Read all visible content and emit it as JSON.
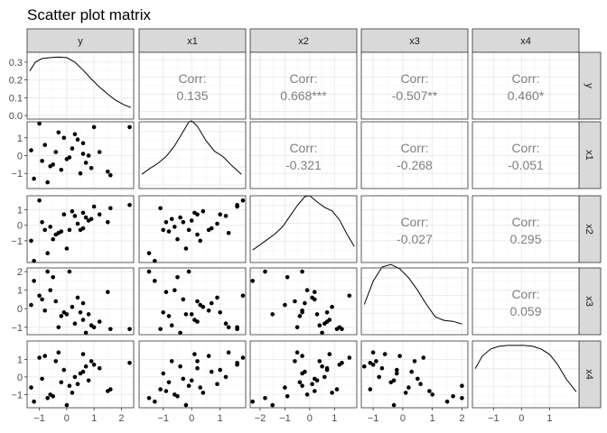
{
  "chart_data": {
    "type": "scatter",
    "title": "Scatter plot matrix",
    "variables": [
      "y",
      "x1",
      "x2",
      "x3",
      "x4"
    ],
    "colors": {
      "strip_fill": "#d9d9d9",
      "strip_border": "#333333",
      "panel_border": "#333333",
      "grid_major": "#ebebeb",
      "grid_minor": "#f5f5f5",
      "point": "#000000",
      "density_line": "#000000",
      "corr_text": "#7f7f7f",
      "tick_text": "#4d4d4d"
    },
    "grid": true,
    "corr_label": "Corr:",
    "axes": {
      "y": {
        "range": [
          -1.45,
          2.45
        ],
        "ticks": [
          -1,
          0,
          1,
          2
        ]
      },
      "x1": {
        "range": [
          -1.85,
          1.9
        ],
        "ticks": [
          -1,
          0,
          1
        ],
        "yticks": [
          -1,
          0,
          1
        ]
      },
      "x2": {
        "range": [
          -2.4,
          1.9
        ],
        "ticks": [
          -2,
          -1,
          0,
          1
        ],
        "yticks": [
          -1,
          0,
          1
        ]
      },
      "x3": {
        "range": [
          -1.4,
          2.2
        ],
        "ticks": [
          -1,
          0,
          1,
          2
        ],
        "yticks": [
          -1,
          0,
          1,
          2
        ]
      },
      "x4": {
        "range": [
          -1.75,
          2.05
        ],
        "ticks": [
          -1,
          0,
          1
        ],
        "yticks": [
          -1,
          0,
          1
        ]
      }
    },
    "density_axis": {
      "range": [
        -0.02,
        0.355
      ],
      "ticks": [
        0.0,
        0.1,
        0.2,
        0.3
      ],
      "tick_labels": [
        "0.0",
        "0.1",
        "0.2",
        "0.3"
      ]
    },
    "correlations": [
      {
        "row": "y",
        "col": "x1",
        "value": "0.135"
      },
      {
        "row": "y",
        "col": "x2",
        "value": "0.668***"
      },
      {
        "row": "y",
        "col": "x3",
        "value": "-0.507**"
      },
      {
        "row": "y",
        "col": "x4",
        "value": "0.460*"
      },
      {
        "row": "x1",
        "col": "x2",
        "value": "-0.321"
      },
      {
        "row": "x1",
        "col": "x3",
        "value": "-0.268"
      },
      {
        "row": "x1",
        "col": "x4",
        "value": "-0.051"
      },
      {
        "row": "x2",
        "col": "x3",
        "value": "-0.027"
      },
      {
        "row": "x2",
        "col": "x4",
        "value": "0.295"
      },
      {
        "row": "x3",
        "col": "x4",
        "value": "0.059"
      }
    ],
    "densities": {
      "y": {
        "x": [
          -1.35,
          -1.15,
          -0.9,
          -0.6,
          -0.3,
          0.0,
          0.3,
          0.6,
          0.9,
          1.2,
          1.5,
          1.8,
          2.1,
          2.35
        ],
        "y": [
          0.25,
          0.3,
          0.32,
          0.325,
          0.328,
          0.325,
          0.3,
          0.255,
          0.205,
          0.16,
          0.12,
          0.085,
          0.06,
          0.045
        ]
      },
      "x1": {
        "x": [
          -1.75,
          -1.5,
          -1.2,
          -0.9,
          -0.6,
          -0.3,
          -0.1,
          0.0,
          0.2,
          0.5,
          0.8,
          1.1,
          1.4,
          1.75
        ],
        "y": [
          0.06,
          0.09,
          0.12,
          0.16,
          0.22,
          0.3,
          0.355,
          0.36,
          0.33,
          0.25,
          0.19,
          0.16,
          0.11,
          0.06
        ]
      },
      "x2": {
        "x": [
          -2.3,
          -2.0,
          -1.7,
          -1.4,
          -1.1,
          -0.8,
          -0.5,
          -0.2,
          0.0,
          0.3,
          0.6,
          0.9,
          1.2,
          1.5,
          1.8
        ],
        "y": [
          0.05,
          0.08,
          0.11,
          0.14,
          0.18,
          0.24,
          0.3,
          0.35,
          0.355,
          0.32,
          0.29,
          0.27,
          0.22,
          0.14,
          0.07
        ]
      },
      "x3": {
        "x": [
          -1.3,
          -1.0,
          -0.7,
          -0.4,
          -0.1,
          0.2,
          0.5,
          0.8,
          1.1,
          1.4,
          1.7,
          2.0
        ],
        "y": [
          0.15,
          0.28,
          0.36,
          0.375,
          0.35,
          0.3,
          0.23,
          0.15,
          0.08,
          0.06,
          0.055,
          0.04
        ]
      },
      "x4": {
        "x": [
          -1.65,
          -1.4,
          -1.1,
          -0.8,
          -0.5,
          -0.2,
          0.1,
          0.4,
          0.7,
          1.0,
          1.3,
          1.6,
          1.95
        ],
        "y": [
          0.2,
          0.27,
          0.31,
          0.325,
          0.33,
          0.33,
          0.33,
          0.325,
          0.31,
          0.28,
          0.22,
          0.14,
          0.07
        ]
      }
    },
    "points": {
      "y": [
        1.0,
        2.3,
        -1.0,
        -0.9,
        -0.5,
        -0.2,
        0.5,
        -0.1,
        0.2,
        0.9,
        -1.2,
        0.6,
        0.1,
        -0.6,
        1.2,
        -0.3,
        0.8,
        1.6,
        -0.8,
        0.3,
        1.5,
        -0.4,
        0.0,
        0.7,
        0.4,
        -0.7,
        0.6,
        -1.3
      ],
      "x1": [
        1.6,
        1.6,
        1.8,
        -0.3,
        -0.5,
        -0.8,
        -1.0,
        1.0,
        0.4,
        -0.7,
        -1.3,
        0.7,
        -0.1,
        -0.6,
        0.2,
        1.3,
        0.0,
        -1.1,
        0.6,
        1.2,
        -0.9,
        0.2,
        -0.2,
        -0.4,
        0.9,
        -1.5,
        0.1,
        0.3
      ],
      "x2": [
        1.2,
        1.3,
        1.6,
        0.2,
        -0.9,
        -0.4,
        -0.3,
        0.7,
        0.9,
        0.4,
        -2.3,
        -0.2,
        -0.3,
        -0.1,
        0.7,
        -0.5,
        0.3,
        1.1,
        -0.3,
        0.6,
        0.2,
        -0.6,
        -1.5,
        0.5,
        0.1,
        -1.8,
        0.8,
        -1.0
      ],
      "x3": [
        -1.0,
        -1.1,
        0.7,
        0.5,
        1.7,
        -0.4,
        -0.2,
        -0.2,
        0.1,
        -0.9,
        1.5,
        0.3,
        2.0,
        1.0,
        -0.7,
        -1.0,
        -0.3,
        -1.1,
        -0.1,
        -0.8,
        0.9,
        0.4,
        -0.3,
        -1.3,
        0.6,
        2.0,
        -0.6,
        0.2
      ],
      "x4": [
        0.7,
        0.8,
        1.1,
        -0.1,
        -1.1,
        -0.3,
        0.2,
        0.4,
        -0.9,
        0.9,
        -1.4,
        0.3,
        -0.5,
        -1.0,
        0.5,
        1.4,
        -0.2,
        -0.7,
        1.2,
        0.0,
        -0.8,
        0.9,
        -1.6,
        0.6,
        -0.4,
        -1.2,
        1.3,
        -0.6
      ]
    }
  }
}
